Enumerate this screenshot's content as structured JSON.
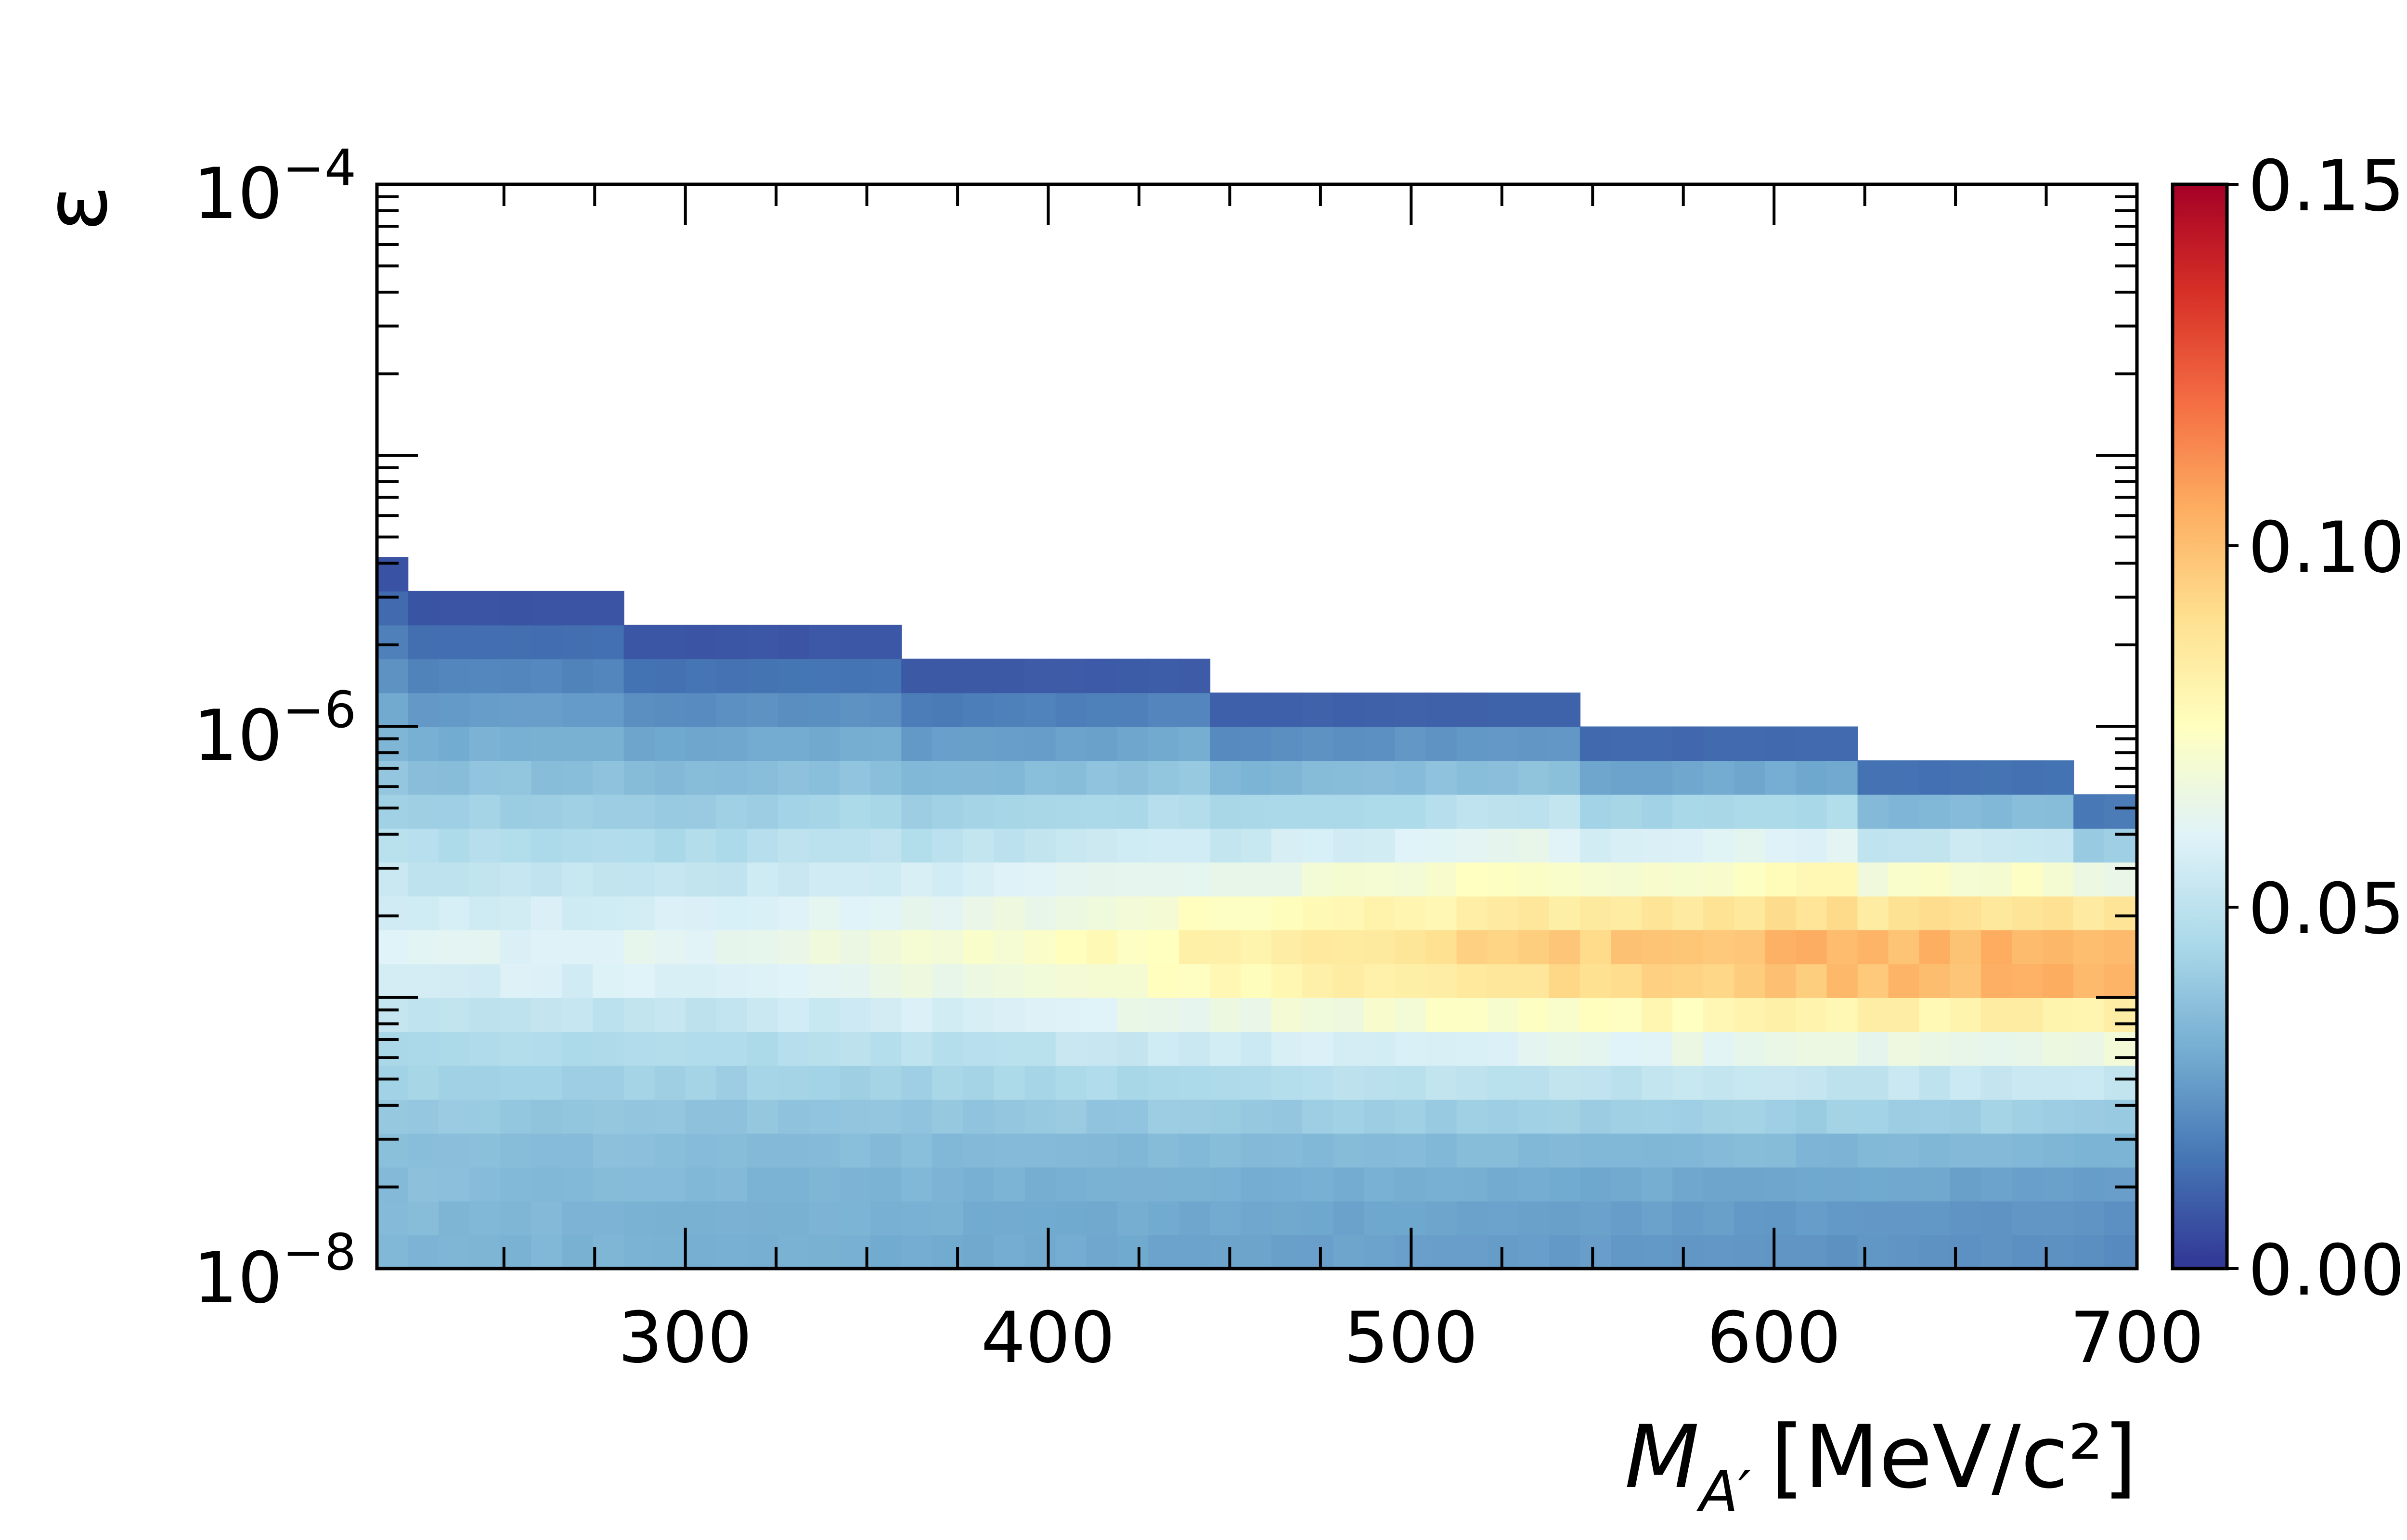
{
  "chart_data": {
    "type": "heatmap",
    "title": "",
    "xlabel": "M",
    "xlabel_sub": "A′",
    "xlabel_unit": "[MeV/c²]",
    "ylabel": "ε",
    "xlim": [
      215,
      700
    ],
    "ylim": [
      1e-08,
      0.0001
    ],
    "yscale": "log",
    "x_ticks": [
      300,
      400,
      500,
      600,
      700
    ],
    "x_tick_labels": [
      "300",
      "400",
      "500",
      "600",
      "700"
    ],
    "y_ticks": [
      1e-08,
      1e-06,
      0.0001
    ],
    "y_tick_labels": [
      {
        "base": "10",
        "exp": "−8"
      },
      {
        "base": "10",
        "exp": "−6"
      },
      {
        "base": "10",
        "exp": "−4"
      }
    ],
    "colorbar": {
      "min": 0.0,
      "max": 0.15,
      "ticks": [
        0.0,
        0.05,
        0.1,
        0.15
      ],
      "tick_labels": [
        "0.00",
        "0.05",
        "0.10",
        "0.15"
      ],
      "colormap": "RdYlBu_r",
      "colors": [
        "#313695",
        "#4575b4",
        "#74add1",
        "#abd9e9",
        "#e0f3f8",
        "#ffffbf",
        "#fee090",
        "#fdae61",
        "#f46d43",
        "#d73027",
        "#a50026"
      ]
    },
    "grid": false,
    "x_bin_width": 8.5,
    "log_eps_bin_width": 0.125,
    "upper_boundary": [
      {
        "x_start": 215,
        "x_end": 223,
        "log_eps": -5.375
      },
      {
        "x_start": 223,
        "x_end": 283,
        "log_eps": -5.5
      },
      {
        "x_start": 283,
        "x_end": 358,
        "log_eps": -5.625
      },
      {
        "x_start": 358,
        "x_end": 448,
        "log_eps": -5.75
      },
      {
        "x_start": 448,
        "x_end": 548,
        "log_eps": -5.875
      },
      {
        "x_start": 548,
        "x_end": 623,
        "log_eps": -6.0
      },
      {
        "x_start": 623,
        "x_end": 680,
        "log_eps": -6.125
      },
      {
        "x_start": 680,
        "x_end": 700,
        "log_eps": -6.25
      }
    ],
    "efficiency_profile": [
      {
        "log_eps": -6.9,
        "mass": 215,
        "value": 0.058
      },
      {
        "log_eps": -6.9,
        "mass": 300,
        "value": 0.06
      },
      {
        "log_eps": -6.9,
        "mass": 400,
        "value": 0.072
      },
      {
        "log_eps": -6.9,
        "mass": 500,
        "value": 0.09
      },
      {
        "log_eps": -6.9,
        "mass": 600,
        "value": 0.103
      },
      {
        "log_eps": -6.9,
        "mass": 700,
        "value": 0.11
      },
      {
        "log_eps": -8.0,
        "mass": 215,
        "value": 0.034
      },
      {
        "log_eps": -8.0,
        "mass": 700,
        "value": 0.021
      }
    ]
  }
}
